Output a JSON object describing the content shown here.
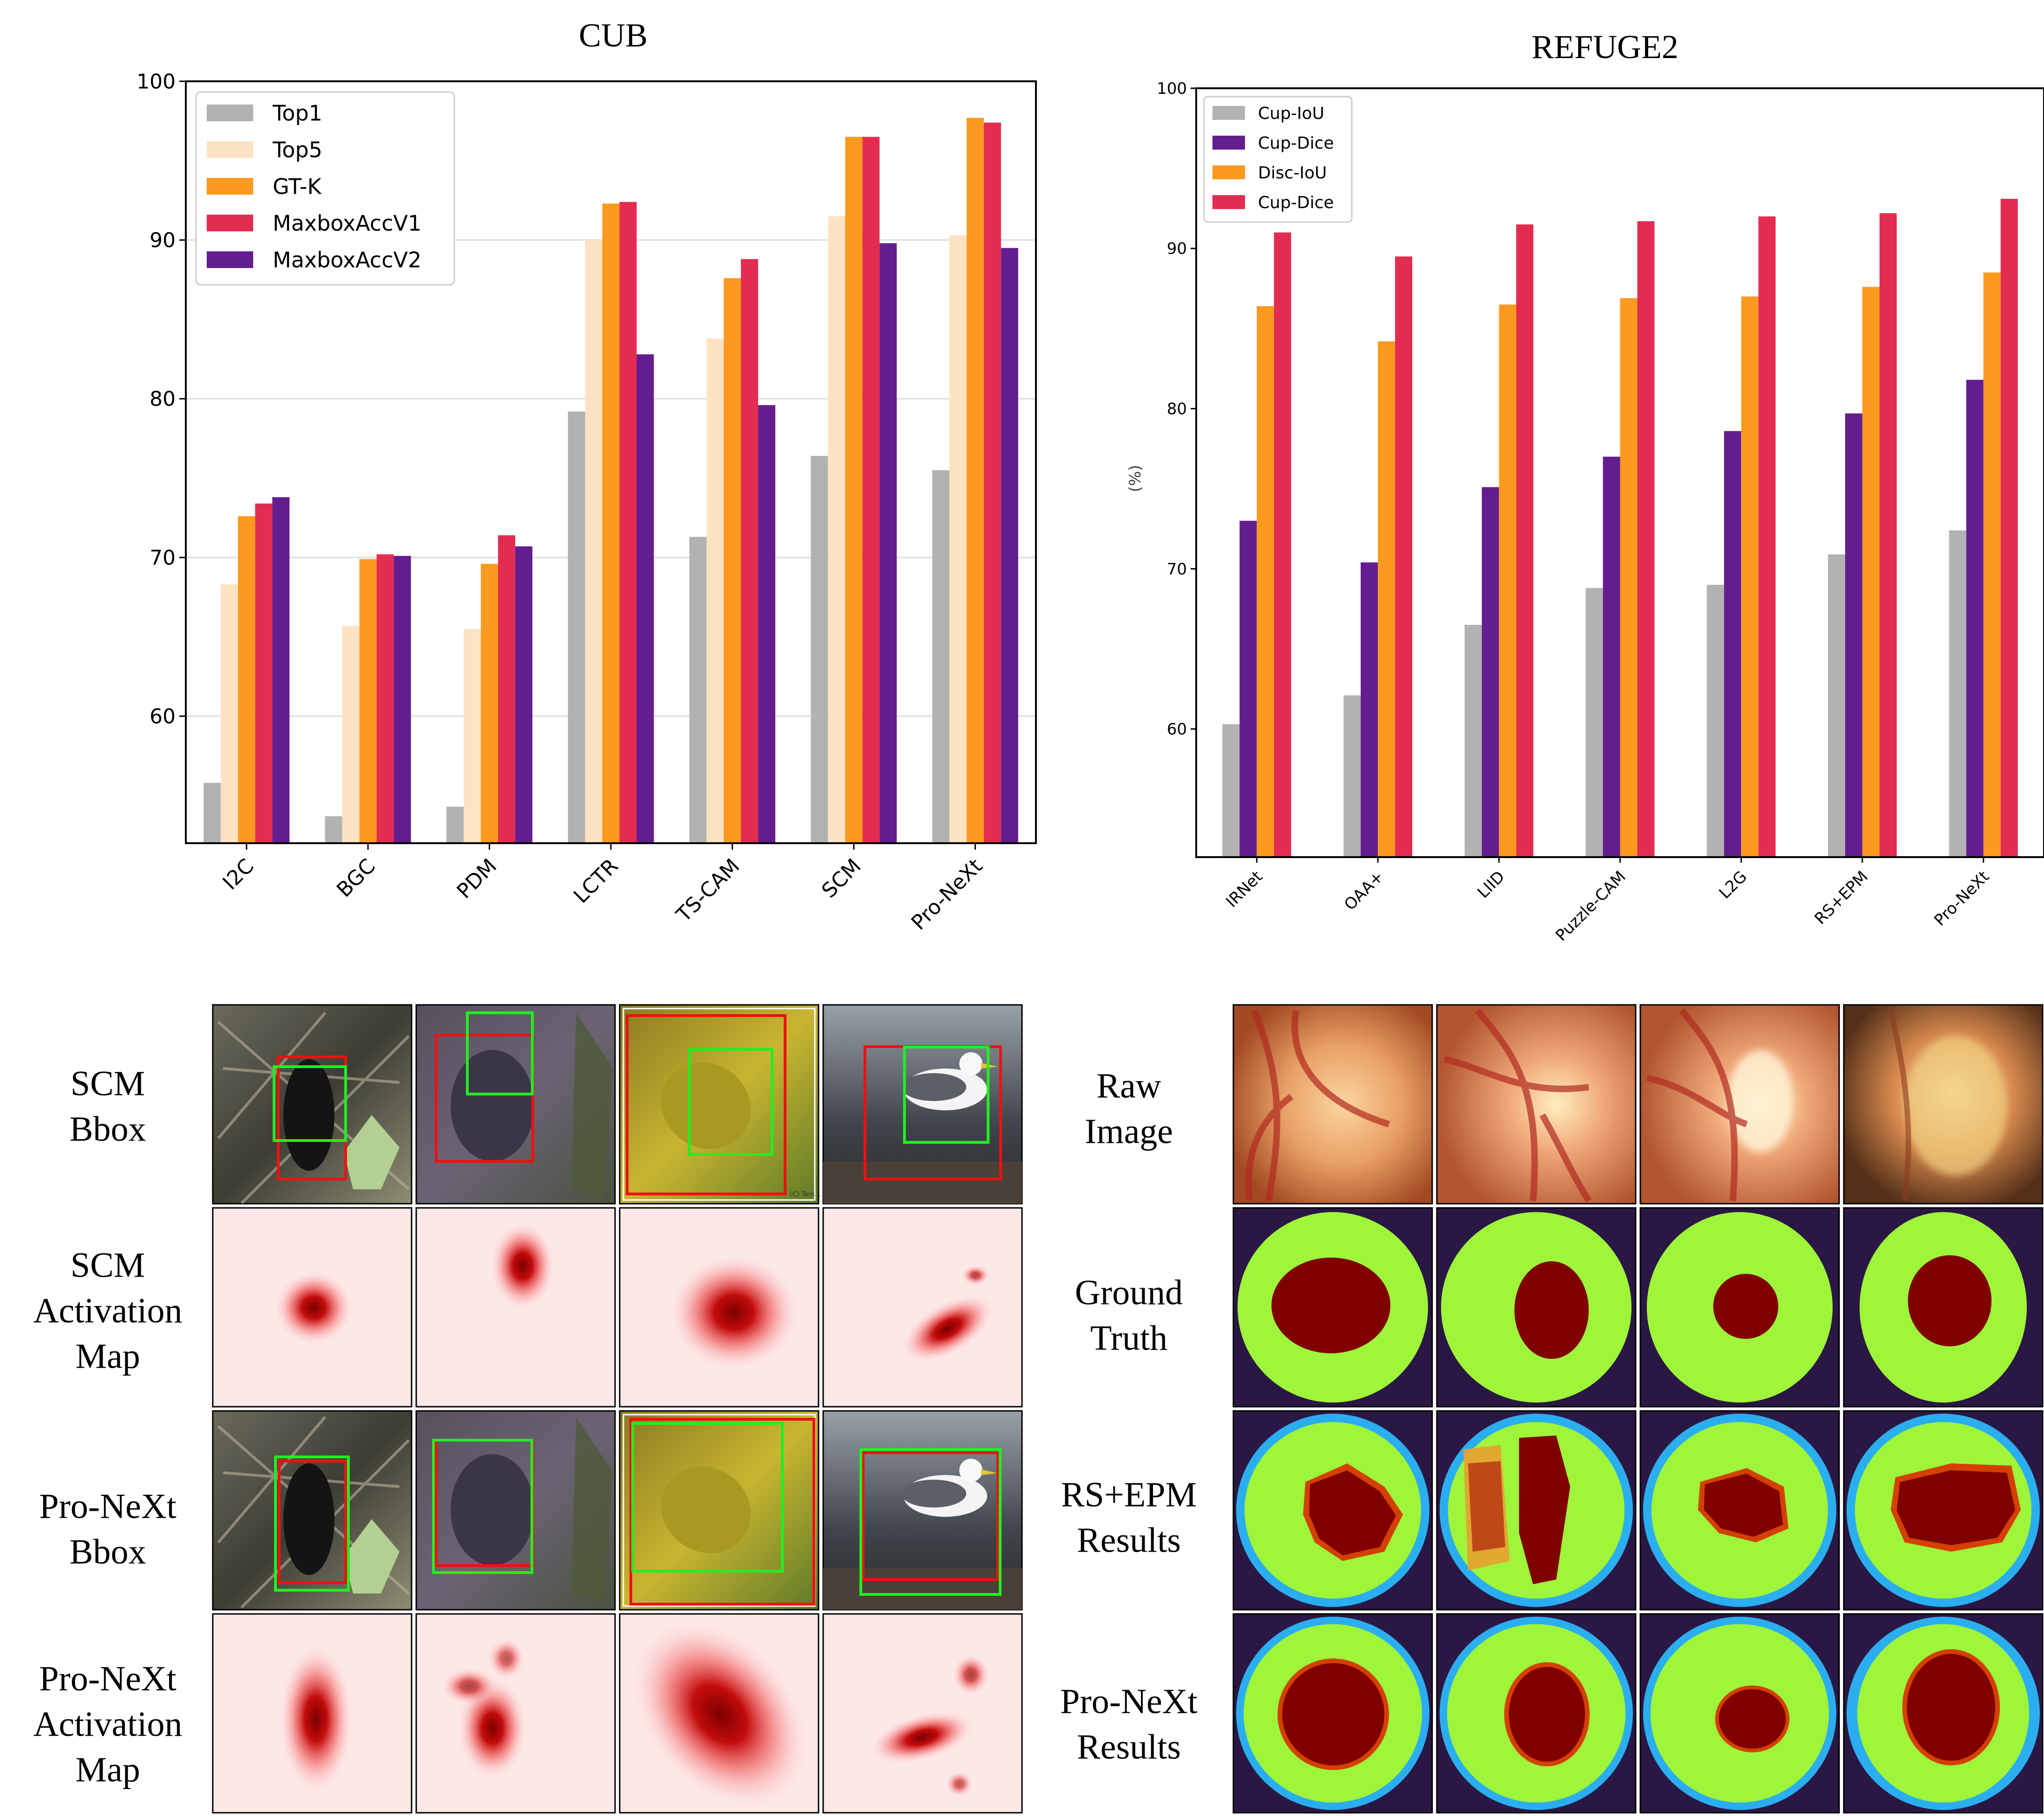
{
  "colors": {
    "Top1": "#b2b2b2",
    "Top5": "#fde2c3",
    "GT-K": "#fb9a1f",
    "MaxboxAccV1": "#e22d50",
    "MaxboxAccV2": "#641d8f",
    "grid": "#dddddd",
    "green_ring": "#9ef53a",
    "dark_bg": "#2a1744",
    "cup": "#800000",
    "box_red": "#ee1111",
    "box_green": "#22ee22"
  },
  "chart_data": [
    {
      "type": "bar",
      "title": "CUB",
      "xlabel": "",
      "ylabel": "",
      "ylim": [
        52,
        100
      ],
      "yticks": [
        60,
        70,
        80,
        90,
        100
      ],
      "grid": true,
      "legend": "top-left",
      "categories": [
        "I2C",
        "BGC",
        "PDM",
        "LCTR",
        "TS-CAM",
        "SCM",
        "Pro-NeXt"
      ],
      "series": [
        {
          "name": "Top1",
          "color": "#b2b2b2",
          "values": [
            55.8,
            53.7,
            54.3,
            79.2,
            71.3,
            76.4,
            75.5
          ]
        },
        {
          "name": "Top5",
          "color": "#fde2c3",
          "values": [
            68.3,
            65.7,
            65.5,
            90.0,
            83.8,
            91.5,
            90.3
          ]
        },
        {
          "name": "GT-K",
          "color": "#fb9a1f",
          "values": [
            72.6,
            69.9,
            69.6,
            92.3,
            87.6,
            96.5,
            97.7
          ]
        },
        {
          "name": "MaxboxAccV1",
          "color": "#e22d50",
          "values": [
            73.4,
            70.2,
            71.4,
            92.4,
            88.8,
            96.5,
            97.4
          ]
        },
        {
          "name": "MaxboxAccV2",
          "color": "#641d8f",
          "values": [
            73.8,
            70.1,
            70.7,
            82.8,
            79.6,
            89.8,
            89.5
          ]
        }
      ]
    },
    {
      "type": "bar",
      "title": "REFUGE2",
      "xlabel": "",
      "ylabel": "(%)",
      "ylim": [
        52,
        100
      ],
      "yticks": [
        60,
        70,
        80,
        90,
        100
      ],
      "grid": false,
      "legend": "top-left",
      "categories": [
        "IRNet",
        "OAA+",
        "LIID",
        "Puzzle-CAM",
        "L2G",
        "RS+EPM",
        "Pro-NeXt"
      ],
      "series": [
        {
          "name": "Cup-IoU",
          "color": "#b2b2b2",
          "values": [
            60.3,
            62.1,
            66.5,
            68.8,
            69.0,
            70.9,
            72.4
          ]
        },
        {
          "name": "Cup-Dice",
          "color": "#641d8f",
          "values": [
            73.0,
            70.4,
            75.1,
            77.0,
            78.6,
            79.7,
            81.8
          ]
        },
        {
          "name": "Disc-IoU",
          "color": "#fb9a1f",
          "values": [
            86.4,
            84.2,
            86.5,
            86.9,
            87.0,
            87.6,
            88.5
          ]
        },
        {
          "name": "Cup-Dice",
          "color": "#e22d50",
          "values": [
            91.0,
            89.5,
            91.5,
            91.7,
            92.0,
            92.2,
            93.1
          ]
        }
      ]
    }
  ],
  "cub_panel": {
    "row_labels": [
      [
        "SCM",
        "Bbox"
      ],
      [
        "SCM",
        "Activation",
        "Map"
      ],
      [
        "Pro-NeXt",
        "Bbox"
      ],
      [
        "Pro-NeXt",
        "Activation",
        "Map"
      ]
    ],
    "watermark": "(C) Tom..."
  },
  "refuge_panel": {
    "row_labels": [
      [
        "Raw",
        "Image"
      ],
      [
        "Ground",
        "Truth"
      ],
      [
        "RS+EPM",
        "Results"
      ],
      [
        "Pro-NeXt",
        "Results"
      ]
    ]
  }
}
